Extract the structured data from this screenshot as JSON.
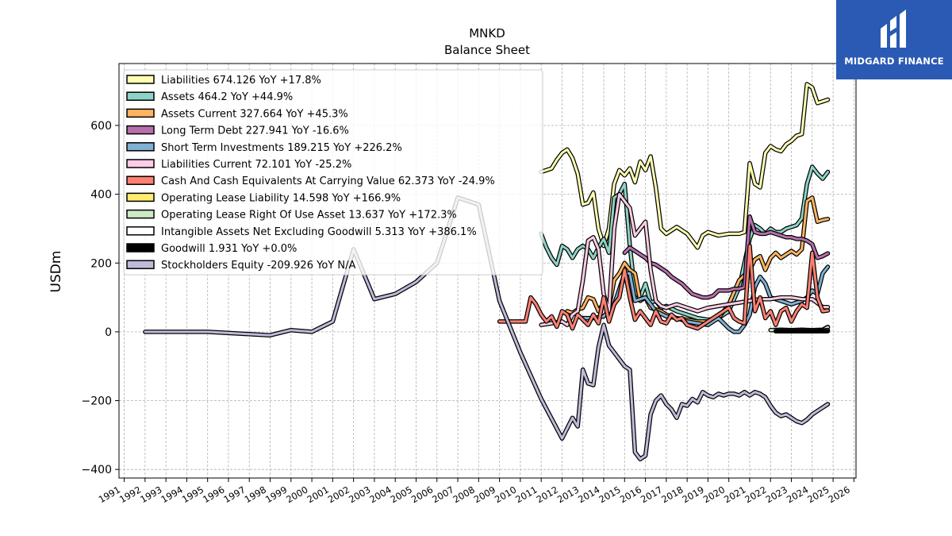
{
  "title": "MNKD",
  "subtitle": "Balance  Sheet",
  "logo": {
    "text": "MIDGARD FINANCE"
  },
  "chart_data": {
    "type": "line",
    "ylabel": "USDm",
    "xlim": [
      1990.75,
      2026.1
    ],
    "ylim": [
      -425,
      780
    ],
    "yticks": [
      -400,
      -200,
      0,
      200,
      400,
      600
    ],
    "xticks": [
      1991,
      1992,
      1993,
      1994,
      1995,
      1996,
      1997,
      1998,
      1999,
      2000,
      2001,
      2002,
      2003,
      2004,
      2005,
      2006,
      2007,
      2008,
      2009,
      2010,
      2011,
      2012,
      2013,
      2014,
      2015,
      2016,
      2017,
      2018,
      2019,
      2020,
      2021,
      2022,
      2023,
      2024,
      2025,
      2026
    ],
    "grid": true,
    "legend_position": "upper-left",
    "series": [
      {
        "name": "Liabilities  674.126 YoY +17.8%",
        "color": "#ffffb2",
        "x": [
          2011.0,
          2011.5,
          2011.75,
          2012.0,
          2012.25,
          2012.5,
          2012.75,
          2013.0,
          2013.25,
          2013.5,
          2013.75,
          2014.0,
          2014.25,
          2014.5,
          2014.75,
          2015.0,
          2015.25,
          2015.5,
          2015.75,
          2016.0,
          2016.25,
          2016.5,
          2016.75,
          2017.0,
          2017.5,
          2018.0,
          2018.5,
          2018.75,
          2019.0,
          2019.5,
          2020.0,
          2020.5,
          2020.75,
          2021.0,
          2021.25,
          2021.5,
          2021.75,
          2022.0,
          2022.25,
          2022.5,
          2022.75,
          2023.0,
          2023.25,
          2023.5,
          2023.75,
          2024.0,
          2024.25,
          2024.5,
          2024.75,
          2025.0
        ],
        "y": [
          465,
          475,
          500,
          520,
          530,
          505,
          460,
          370,
          375,
          405,
          300,
          250,
          300,
          430,
          470,
          455,
          475,
          435,
          495,
          470,
          510,
          420,
          300,
          285,
          305,
          285,
          245,
          280,
          290,
          280,
          285,
          285,
          290,
          490,
          430,
          420,
          520,
          540,
          530,
          525,
          545,
          555,
          570,
          575,
          720,
          710,
          665,
          670,
          675,
          null
        ]
      },
      {
        "name": "Assets  464.2 YoY +44.9%",
        "color": "#8dd3c7",
        "x": [
          2011.0,
          2011.25,
          2011.5,
          2011.75,
          2012.0,
          2012.25,
          2012.5,
          2012.75,
          2013.0,
          2013.25,
          2013.5,
          2013.75,
          2014.0,
          2014.25,
          2014.5,
          2014.75,
          2015.0,
          2015.25,
          2015.5,
          2015.75,
          2016.0,
          2016.25,
          2016.5,
          2016.75,
          2017.0,
          2017.5,
          2018.0,
          2018.5,
          2019.0,
          2019.5,
          2020.0,
          2020.5,
          2021.0,
          2021.25,
          2021.5,
          2021.75,
          2022.0,
          2022.25,
          2022.5,
          2022.75,
          2023.0,
          2023.25,
          2023.5,
          2023.75,
          2024.0,
          2024.25,
          2024.5,
          2024.75
        ],
        "y": [
          285,
          245,
          215,
          195,
          250,
          240,
          215,
          240,
          250,
          240,
          215,
          245,
          270,
          230,
          390,
          400,
          430,
          250,
          115,
          100,
          140,
          85,
          90,
          70,
          75,
          60,
          50,
          40,
          35,
          40,
          60,
          130,
          270,
          310,
          300,
          285,
          300,
          290,
          290,
          300,
          305,
          310,
          330,
          430,
          480,
          460,
          445,
          465
        ]
      },
      {
        "name": "Assets Current  327.664 YoY +45.3%",
        "color": "#fdb462",
        "x": [
          2012.25,
          2012.5,
          2012.75,
          2013.0,
          2013.25,
          2013.5,
          2013.75,
          2014.0,
          2014.25,
          2014.5,
          2014.75,
          2015.0,
          2015.25,
          2015.5,
          2015.75,
          2016.0,
          2016.25,
          2016.5,
          2016.75,
          2017.0,
          2017.5,
          2018.0,
          2018.5,
          2019.0,
          2019.5,
          2020.0,
          2020.5,
          2021.0,
          2021.25,
          2021.5,
          2021.75,
          2022.0,
          2022.25,
          2022.5,
          2022.75,
          2023.0,
          2023.25,
          2023.5,
          2023.75,
          2024.0,
          2024.25,
          2024.5,
          2024.75
        ],
        "y": [
          60,
          55,
          65,
          70,
          100,
          95,
          60,
          85,
          70,
          150,
          170,
          200,
          180,
          170,
          90,
          100,
          70,
          65,
          60,
          50,
          40,
          35,
          30,
          30,
          40,
          80,
          150,
          180,
          210,
          220,
          180,
          215,
          230,
          215,
          225,
          235,
          225,
          240,
          380,
          390,
          320,
          325,
          328
        ]
      },
      {
        "name": "Long Term Debt  227.941 YoY -16.6%",
        "color": "#b86fae",
        "x": [
          2015.0,
          2015.25,
          2015.5,
          2015.75,
          2016.0,
          2016.25,
          2016.5,
          2016.75,
          2017.0,
          2017.25,
          2017.5,
          2017.75,
          2018.0,
          2018.25,
          2018.5,
          2018.75,
          2019.0,
          2019.25,
          2019.5,
          2019.75,
          2020.0,
          2020.25,
          2020.5,
          2020.75,
          2021.0,
          2021.25,
          2021.5,
          2021.75,
          2022.0,
          2022.25,
          2022.5,
          2022.75,
          2023.0,
          2023.25,
          2023.5,
          2023.75,
          2024.0,
          2024.25,
          2024.5,
          2024.75
        ],
        "y": [
          230,
          245,
          235,
          225,
          215,
          200,
          195,
          185,
          175,
          160,
          150,
          140,
          125,
          110,
          105,
          100,
          100,
          105,
          120,
          120,
          120,
          125,
          125,
          130,
          335,
          290,
          285,
          285,
          290,
          285,
          280,
          275,
          275,
          270,
          270,
          265,
          255,
          215,
          220,
          228
        ]
      },
      {
        "name": "Short Term Investments  189.215 YoY +226.2%",
        "color": "#80b1d3",
        "x": [
          2013.0,
          2013.5,
          2014.0,
          2014.5,
          2015.0,
          2015.25,
          2015.5,
          2016.0,
          2016.5,
          2017.0,
          2017.5,
          2018.0,
          2018.5,
          2019.0,
          2019.5,
          2020.0,
          2020.25,
          2020.5,
          2020.75,
          2021.0,
          2021.25,
          2021.5,
          2021.75,
          2022.0,
          2022.5,
          2023.0,
          2023.5,
          2023.75,
          2024.0,
          2024.25,
          2024.5,
          2024.75
        ],
        "y": [
          40,
          40,
          45,
          80,
          170,
          170,
          90,
          100,
          60,
          45,
          40,
          30,
          25,
          20,
          40,
          10,
          0,
          0,
          20,
          50,
          130,
          160,
          140,
          100,
          90,
          80,
          90,
          100,
          120,
          110,
          170,
          189
        ]
      },
      {
        "name": "Liabilities Current  72.101 YoY -25.2%",
        "color": "#fccde5",
        "x": [
          2011.0,
          2011.5,
          2012.0,
          2012.25,
          2012.5,
          2012.75,
          2013.0,
          2013.25,
          2013.5,
          2013.75,
          2014.0,
          2014.25,
          2014.5,
          2014.75,
          2015.0,
          2015.25,
          2015.5,
          2015.75,
          2016.0,
          2016.25,
          2016.5,
          2016.75,
          2017.0,
          2017.5,
          2018.0,
          2018.5,
          2019.0,
          2019.5,
          2020.0,
          2020.5,
          2021.0,
          2021.5,
          2022.0,
          2022.5,
          2023.0,
          2023.5,
          2024.0,
          2024.5,
          2024.75
        ],
        "y": [
          20,
          25,
          30,
          20,
          50,
          60,
          150,
          265,
          275,
          240,
          110,
          60,
          300,
          400,
          380,
          360,
          280,
          300,
          320,
          180,
          90,
          75,
          70,
          80,
          70,
          60,
          70,
          75,
          80,
          85,
          90,
          95,
          95,
          100,
          100,
          95,
          95,
          72,
          72
        ]
      },
      {
        "name": "Cash And Cash Equivalents At Carrying Value  62.373 YoY -24.9%",
        "color": "#fb8072",
        "x": [
          2009.0,
          2009.5,
          2010.0,
          2010.25,
          2010.5,
          2010.75,
          2011.0,
          2011.25,
          2011.5,
          2011.75,
          2012.0,
          2012.25,
          2012.5,
          2012.75,
          2013.0,
          2013.25,
          2013.5,
          2013.75,
          2014.0,
          2014.25,
          2014.5,
          2014.75,
          2015.0,
          2015.25,
          2015.5,
          2015.75,
          2016.0,
          2016.25,
          2016.5,
          2016.75,
          2017.0,
          2017.25,
          2017.5,
          2017.75,
          2018.0,
          2018.5,
          2019.0,
          2019.5,
          2020.0,
          2020.25,
          2020.5,
          2020.75,
          2021.0,
          2021.25,
          2021.5,
          2021.75,
          2022.0,
          2022.25,
          2022.5,
          2022.75,
          2023.0,
          2023.25,
          2023.5,
          2023.75,
          2024.0,
          2024.25,
          2024.5,
          2024.75
        ],
        "y": [
          30,
          30,
          30,
          30,
          100,
          80,
          50,
          30,
          45,
          15,
          60,
          50,
          10,
          50,
          35,
          20,
          50,
          25,
          100,
          30,
          80,
          100,
          180,
          100,
          35,
          60,
          40,
          20,
          60,
          30,
          25,
          50,
          35,
          40,
          20,
          10,
          30,
          50,
          70,
          40,
          30,
          25,
          250,
          60,
          100,
          40,
          60,
          20,
          60,
          70,
          30,
          60,
          80,
          70,
          230,
          100,
          60,
          62
        ]
      },
      {
        "name": "Operating Lease Liability  14.598 YoY +166.9%",
        "color": "#ffed6f",
        "x": [
          2022.0,
          2022.5,
          2023.0,
          2023.5,
          2024.0,
          2024.5,
          2024.75
        ],
        "y": [
          5,
          6,
          5,
          6,
          5,
          6,
          14.6
        ]
      },
      {
        "name": "Operating Lease Right Of Use Asset  13.637 YoY +172.3%",
        "color": "#ccebc5",
        "x": [
          2022.0,
          2022.5,
          2023.0,
          2023.5,
          2024.0,
          2024.5,
          2024.75
        ],
        "y": [
          5,
          5,
          5,
          5,
          5,
          5,
          13.6
        ]
      },
      {
        "name": "Intangible Assets Net Excluding Goodwill  5.313 YoY +386.1%",
        "color": "#ffffff",
        "x": [
          2022.25,
          2022.75,
          2023.25,
          2023.75,
          2024.25,
          2024.75
        ],
        "y": [
          2,
          2,
          2,
          2,
          2,
          5.3
        ]
      },
      {
        "name": "Goodwill  1.931 YoY +0.0%",
        "color": "#000000",
        "x": [
          2022.25,
          2022.75,
          2023.25,
          2023.75,
          2024.25,
          2024.75
        ],
        "y": [
          1.9,
          1.9,
          1.9,
          1.9,
          1.9,
          1.9
        ]
      },
      {
        "name": "Stockholders Equity  -209.926 YoY N/A",
        "color": "#bebada",
        "x": [
          1992.0,
          1995.0,
          1998.0,
          1999.0,
          2000.0,
          2001.0,
          2002.0,
          2003.0,
          2004.0,
          2005.0,
          2006.0,
          2007.0,
          2008.0,
          2009.0,
          2010.0,
          2011.0,
          2012.0,
          2012.5,
          2012.75,
          2013.0,
          2013.25,
          2013.5,
          2013.75,
          2014.0,
          2014.25,
          2014.5,
          2014.75,
          2015.0,
          2015.25,
          2015.5,
          2015.75,
          2016.0,
          2016.25,
          2016.5,
          2016.75,
          2017.0,
          2017.25,
          2017.5,
          2017.75,
          2018.0,
          2018.25,
          2018.5,
          2018.75,
          2019.0,
          2019.25,
          2019.5,
          2019.75,
          2020.0,
          2020.25,
          2020.5,
          2020.75,
          2021.0,
          2021.25,
          2021.5,
          2021.75,
          2022.0,
          2022.25,
          2022.5,
          2022.75,
          2023.0,
          2023.25,
          2023.5,
          2023.75,
          2024.0,
          2024.25,
          2024.5,
          2024.75
        ],
        "y": [
          0,
          0,
          -10,
          5,
          0,
          30,
          240,
          95,
          110,
          145,
          200,
          390,
          370,
          90,
          -60,
          -195,
          -310,
          -250,
          -275,
          -110,
          -150,
          -155,
          -45,
          20,
          -40,
          -60,
          -80,
          -100,
          -110,
          -350,
          -370,
          -360,
          -240,
          -200,
          -185,
          -210,
          -225,
          -250,
          -210,
          -215,
          -195,
          -205,
          -175,
          -185,
          -190,
          -180,
          -185,
          -180,
          -180,
          -185,
          -175,
          -185,
          -175,
          -180,
          -190,
          -215,
          -235,
          -245,
          -240,
          -250,
          -260,
          -265,
          -255,
          -240,
          -230,
          -220,
          -210
        ]
      }
    ]
  }
}
